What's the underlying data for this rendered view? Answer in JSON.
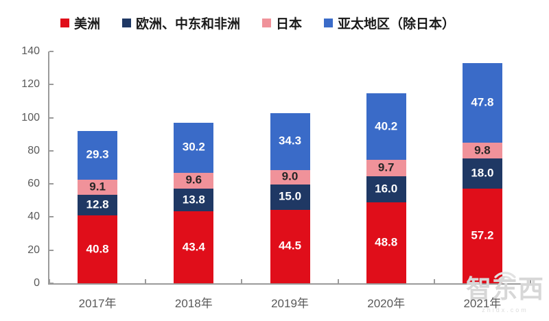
{
  "chart_data": {
    "type": "bar",
    "stacked": true,
    "title": "",
    "categories": [
      "2017年",
      "2018年",
      "2019年",
      "2020年",
      "2021年"
    ],
    "series": [
      {
        "name": "美洲",
        "color": "#e00e1a",
        "label_color": "#ffffff",
        "values": [
          40.8,
          43.4,
          44.5,
          48.8,
          57.2
        ]
      },
      {
        "name": "欧洲、中东和非洲",
        "color": "#1f3864",
        "label_color": "#ffffff",
        "values": [
          12.8,
          13.8,
          15.0,
          16.0,
          18.0
        ]
      },
      {
        "name": "日本",
        "color": "#f0929a",
        "label_color": "#262626",
        "values": [
          9.1,
          9.6,
          9.0,
          9.7,
          9.8
        ]
      },
      {
        "name": "亚太地区（除日本）",
        "color": "#3a6bc8",
        "label_color": "#ffffff",
        "values": [
          29.3,
          30.2,
          34.3,
          40.2,
          47.8
        ]
      }
    ],
    "ylim": [
      0,
      140
    ],
    "yticks": [
      0,
      20,
      40,
      60,
      80,
      100,
      120,
      140
    ],
    "value_decimals": 1,
    "grid": false,
    "legend_position": "top"
  },
  "watermark": {
    "text": "智东西",
    "subtext": "zhidx.com"
  },
  "colors": {
    "background": "#ffffff",
    "axis": "#9a9a9a",
    "tick_label": "#595959",
    "legend_text": "#1a1a1a",
    "watermark": "#d7d7d7"
  }
}
